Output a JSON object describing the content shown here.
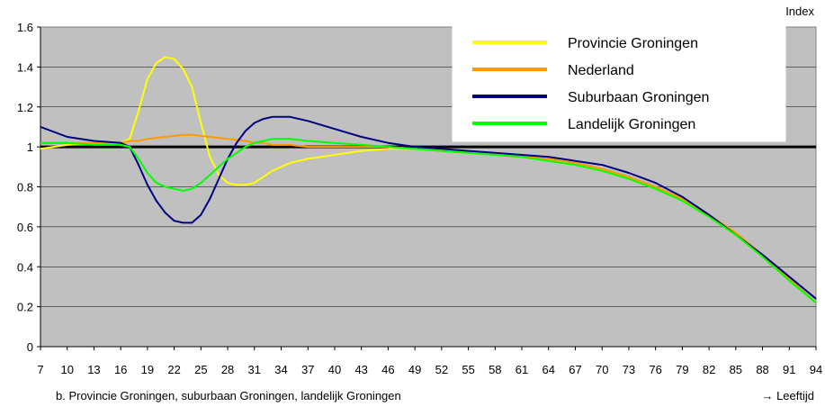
{
  "chart_data": {
    "type": "line",
    "ylabel": "Index",
    "xlabel": "Leeftijd",
    "xlabel_arrow": "→",
    "caption": "b. Provincie Groningen, suburbaan Groningen, landelijk Groningen",
    "ylim": [
      0,
      1.6
    ],
    "yticks": [
      "0",
      "0.2",
      "0.4",
      "0.6",
      "0.8",
      "1",
      "1.2",
      "1.4",
      "1.6"
    ],
    "xlim": [
      7,
      94
    ],
    "xticks": [
      "7",
      "10",
      "13",
      "16",
      "19",
      "22",
      "25",
      "28",
      "31",
      "34",
      "37",
      "40",
      "43",
      "46",
      "49",
      "52",
      "55",
      "58",
      "61",
      "64",
      "67",
      "70",
      "73",
      "76",
      "79",
      "82",
      "85",
      "88",
      "91",
      "94"
    ],
    "grid": true,
    "legend_position": "top-right",
    "reference_line": 1,
    "colors": {
      "plot_bg": "#c0c0c0",
      "reference": "#000000"
    },
    "x": [
      7,
      10,
      13,
      16,
      17,
      18,
      19,
      20,
      21,
      22,
      23,
      24,
      25,
      26,
      27,
      28,
      29,
      30,
      31,
      32,
      33,
      34,
      35,
      37,
      40,
      43,
      46,
      49,
      52,
      55,
      58,
      61,
      64,
      67,
      70,
      73,
      76,
      79,
      82,
      85,
      88,
      91,
      94
    ],
    "series": [
      {
        "name": "Provincie Groningen",
        "color": "#ffff00",
        "values": [
          0.99,
          1.01,
          1.02,
          1.02,
          1.04,
          1.18,
          1.34,
          1.42,
          1.45,
          1.44,
          1.39,
          1.3,
          1.12,
          0.95,
          0.86,
          0.82,
          0.81,
          0.81,
          0.82,
          0.85,
          0.88,
          0.9,
          0.92,
          0.94,
          0.96,
          0.98,
          0.99,
          0.99,
          0.98,
          0.97,
          0.96,
          0.95,
          0.93,
          0.91,
          0.88,
          0.84,
          0.79,
          0.73,
          0.65,
          0.56,
          0.45,
          0.33,
          0.22
        ]
      },
      {
        "name": "Nederland",
        "color": "#ff9900",
        "values": [
          1.02,
          1.02,
          1.02,
          1.02,
          1.03,
          1.03,
          1.04,
          1.045,
          1.05,
          1.055,
          1.06,
          1.06,
          1.055,
          1.05,
          1.045,
          1.04,
          1.035,
          1.03,
          1.02,
          1.02,
          1.01,
          1.01,
          1.01,
          1.0,
          1.0,
          1.0,
          1.0,
          0.99,
          0.98,
          0.97,
          0.96,
          0.95,
          0.94,
          0.92,
          0.89,
          0.85,
          0.8,
          0.74,
          0.66,
          0.57,
          0.46,
          0.34,
          0.22
        ]
      },
      {
        "name": "Suburbaan Groningen",
        "color": "#000080",
        "values": [
          1.1,
          1.05,
          1.03,
          1.02,
          1.0,
          0.91,
          0.81,
          0.73,
          0.67,
          0.63,
          0.62,
          0.62,
          0.66,
          0.74,
          0.84,
          0.94,
          1.02,
          1.08,
          1.12,
          1.14,
          1.15,
          1.15,
          1.15,
          1.13,
          1.09,
          1.05,
          1.02,
          1.0,
          0.99,
          0.98,
          0.97,
          0.96,
          0.95,
          0.93,
          0.91,
          0.87,
          0.82,
          0.75,
          0.66,
          0.56,
          0.46,
          0.35,
          0.24
        ]
      },
      {
        "name": "Landelijk Groningen",
        "color": "#00ff00",
        "values": [
          1.02,
          1.02,
          1.01,
          1.01,
          1.0,
          0.94,
          0.87,
          0.82,
          0.8,
          0.79,
          0.78,
          0.79,
          0.82,
          0.86,
          0.9,
          0.94,
          0.97,
          1.0,
          1.02,
          1.03,
          1.04,
          1.04,
          1.04,
          1.03,
          1.02,
          1.01,
          1.0,
          0.99,
          0.98,
          0.97,
          0.96,
          0.95,
          0.93,
          0.91,
          0.88,
          0.84,
          0.79,
          0.73,
          0.65,
          0.56,
          0.45,
          0.33,
          0.22
        ]
      }
    ]
  }
}
